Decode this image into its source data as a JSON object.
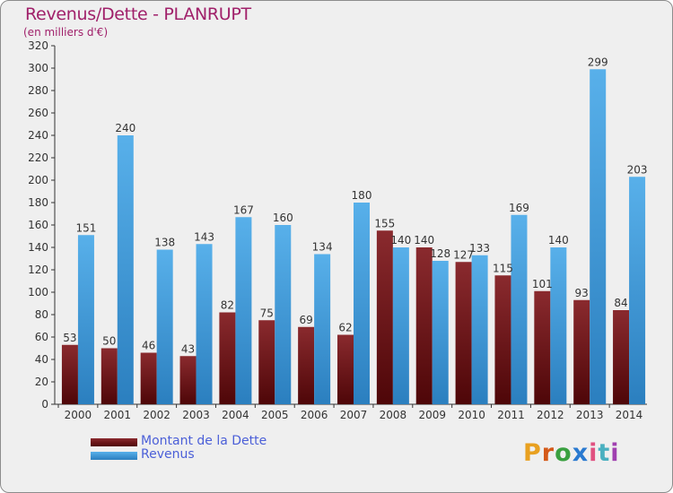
{
  "chart_data": {
    "type": "bar",
    "title": "Revenus/Dette - PLANRUPT",
    "subtitle": "(en milliers d'€)",
    "categories": [
      "2000",
      "2001",
      "2002",
      "2003",
      "2004",
      "2005",
      "2006",
      "2007",
      "2008",
      "2009",
      "2010",
      "2011",
      "2012",
      "2013",
      "2014"
    ],
    "series": [
      {
        "name": "Montant de la Dette",
        "color": "#7a1a1e",
        "values": [
          53,
          50,
          46,
          43,
          82,
          75,
          69,
          62,
          155,
          140,
          127,
          115,
          101,
          93,
          84
        ]
      },
      {
        "name": "Revenus",
        "color": "#4aa3e0",
        "values": [
          151,
          240,
          138,
          143,
          167,
          160,
          134,
          180,
          140,
          128,
          133,
          169,
          140,
          299,
          203
        ]
      }
    ],
    "ylim": [
      0,
      320
    ],
    "yticks": [
      0,
      20,
      40,
      60,
      80,
      100,
      120,
      140,
      160,
      180,
      200,
      220,
      240,
      260,
      280,
      300,
      320
    ],
    "grid": false,
    "legend": "bottom-left"
  },
  "legend": {
    "debt_label": "Montant de la Dette",
    "revenue_label": "Revenus"
  },
  "logo": {
    "text": "Proxiti"
  }
}
